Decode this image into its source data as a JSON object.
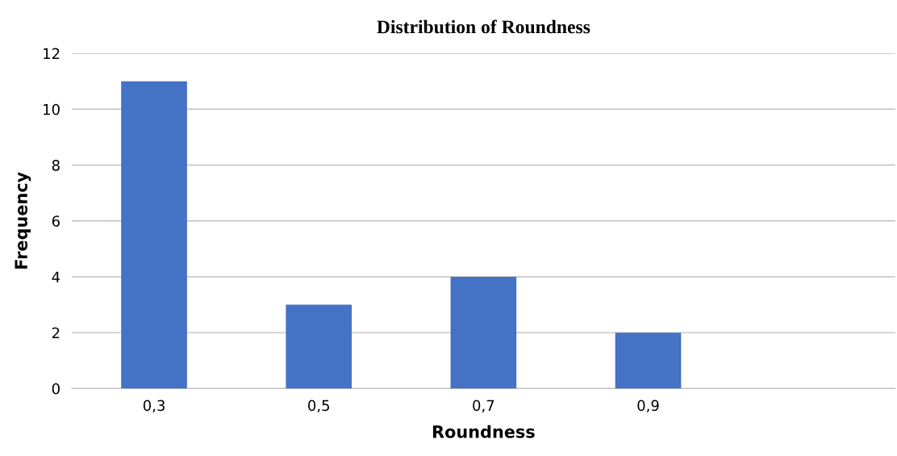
{
  "chart_data": {
    "type": "bar",
    "title": "Distribution of Roundness",
    "xlabel": "Roundness",
    "ylabel": "Frequency",
    "categories": [
      "0,3",
      "0,5",
      "0,7",
      "0,9",
      null
    ],
    "values": [
      11,
      3,
      4,
      2,
      null
    ],
    "color": "#4472c4",
    "ylim": [
      0,
      12
    ],
    "yticks": [
      0,
      2,
      4,
      6,
      8,
      10,
      12
    ],
    "grid": "y"
  }
}
